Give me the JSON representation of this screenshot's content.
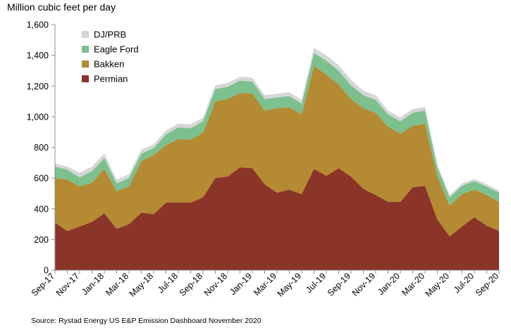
{
  "chart_data": {
    "type": "area",
    "stacked": true,
    "title": "",
    "unit_label": "Million cubic feet per day",
    "source": "Source: Rystad Energy US E&P Emission Dashboard November 2020",
    "ylim": [
      0,
      1600
    ],
    "yticks": [
      0,
      200,
      400,
      600,
      800,
      1000,
      1200,
      1400,
      1600
    ],
    "ytick_labels": [
      "0",
      "200",
      "400",
      "600",
      "800",
      "1,000",
      "1,200",
      "1,400",
      "1,600"
    ],
    "x": [
      "Sep-17",
      "Oct-17",
      "Nov-17",
      "Dec-17",
      "Jan-18",
      "Feb-18",
      "Mar-18",
      "Apr-18",
      "May-18",
      "Jun-18",
      "Jul-18",
      "Aug-18",
      "Sep-18",
      "Oct-18",
      "Nov-18",
      "Dec-18",
      "Jan-19",
      "Feb-19",
      "Mar-19",
      "Apr-19",
      "May-19",
      "Jun-19",
      "Jul-19",
      "Aug-19",
      "Sep-19",
      "Oct-19",
      "Nov-19",
      "Dec-19",
      "Jan-20",
      "Feb-20",
      "Mar-20",
      "Apr-20",
      "May-20",
      "Jun-20",
      "Jul-20",
      "Aug-20",
      "Sep-20"
    ],
    "xtick_labels": [
      "Sep-17",
      "Nov-17",
      "Jan-18",
      "Mar-18",
      "May-18",
      "Jul-18",
      "Sep-18",
      "Nov-18",
      "Jan-19",
      "Mar-19",
      "May-19",
      "Jul-19",
      "Sep-19",
      "Nov-19",
      "Jan-20",
      "Mar-20",
      "May-20",
      "Jul-20",
      "Sep-20"
    ],
    "legend_position": "top-left",
    "grid": false,
    "series": [
      {
        "name": "Permian",
        "color": "#8B3428",
        "values": [
          310,
          255,
          285,
          315,
          370,
          270,
          300,
          375,
          365,
          440,
          440,
          440,
          475,
          600,
          610,
          670,
          665,
          560,
          505,
          525,
          495,
          660,
          615,
          665,
          610,
          530,
          490,
          445,
          445,
          540,
          550,
          330,
          220,
          285,
          345,
          290,
          255
        ]
      },
      {
        "name": "Bakken",
        "color": "#B48A32",
        "values": [
          290,
          335,
          260,
          255,
          290,
          245,
          245,
          335,
          385,
          375,
          415,
          410,
          420,
          500,
          505,
          485,
          485,
          480,
          550,
          535,
          520,
          670,
          660,
          545,
          505,
          525,
          535,
          490,
          445,
          400,
          405,
          280,
          200,
          210,
          180,
          200,
          190
        ]
      },
      {
        "name": "Eagle Ford",
        "color": "#7CC08E",
        "values": [
          75,
          65,
          60,
          75,
          70,
          50,
          55,
          50,
          45,
          70,
          75,
          75,
          75,
          80,
          80,
          80,
          80,
          75,
          70,
          75,
          70,
          85,
          90,
          90,
          90,
          85,
          85,
          80,
          80,
          85,
          85,
          60,
          55,
          55,
          55,
          55,
          60
        ]
      },
      {
        "name": "DJ/PRB",
        "color": "#D6D6D6",
        "values": [
          20,
          20,
          30,
          30,
          30,
          25,
          25,
          25,
          25,
          25,
          25,
          25,
          25,
          25,
          25,
          25,
          25,
          25,
          25,
          25,
          25,
          35,
          35,
          35,
          35,
          30,
          30,
          25,
          25,
          25,
          25,
          20,
          15,
          15,
          15,
          15,
          15
        ]
      }
    ]
  }
}
